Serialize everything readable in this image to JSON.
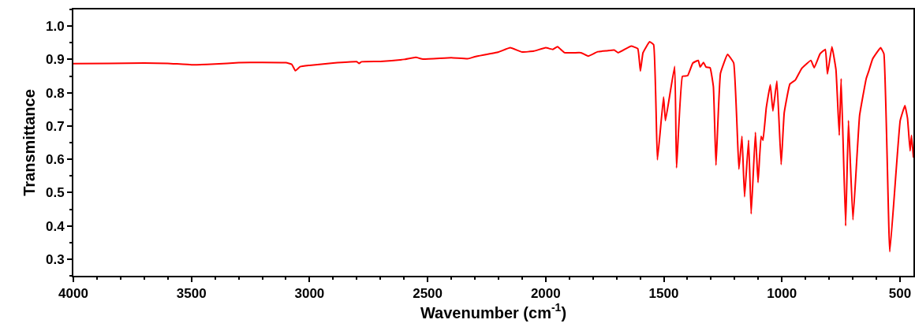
{
  "chart_data": {
    "type": "line",
    "xlabel": "Wavenumber (cm$^{-1}$)",
    "ylabel": "Transmittance",
    "xlim": [
      4000,
      443
    ],
    "ylim": [
      0.25,
      1.05
    ],
    "xticks": [
      4000,
      3500,
      3000,
      2500,
      2000,
      1500,
      1000,
      500
    ],
    "yticks": [
      0.3,
      0.4,
      0.5,
      0.6,
      0.7,
      0.8,
      0.9,
      {
        "value": 1,
        "label": "1.0"
      }
    ],
    "marker": "none",
    "line_style": "solid",
    "series": [
      {
        "color": "#ff0000",
        "x": [
          4000,
          3850,
          3700,
          3600,
          3500,
          3400,
          3300,
          3200,
          3100,
          3075,
          3060,
          3040,
          3000,
          2900,
          2800,
          2790,
          2780,
          2700,
          2600,
          2550,
          2520,
          2400,
          2330,
          2300,
          2200,
          2150,
          2100,
          2050,
          2000,
          1970,
          1950,
          1920,
          1880,
          1850,
          1820,
          1780,
          1740,
          1710,
          1693,
          1638,
          1610,
          1599,
          1588,
          1560,
          1543,
          1527,
          1501,
          1493,
          1454,
          1446,
          1421,
          1399,
          1377,
          1354,
          1346,
          1332,
          1321,
          1304,
          1290,
          1279,
          1260,
          1230,
          1204,
          1182,
          1169,
          1158,
          1141,
          1130,
          1112,
          1101,
          1088,
          1080,
          1066,
          1049,
          1038,
          1021,
          1003,
          990,
          966,
          943,
          916,
          877,
          863,
          838,
          816,
          807,
          788,
          771,
          757,
          749,
          730,
          718,
          699,
          671,
          643,
          632,
          616,
          582,
          568,
          543,
          499,
          479,
          468,
          457,
          451,
          443
        ],
        "values": [
          0.887,
          0.888,
          0.889,
          0.888,
          0.884,
          0.886,
          0.89,
          0.891,
          0.89,
          0.885,
          0.866,
          0.878,
          0.882,
          0.889,
          0.893,
          0.888,
          0.893,
          0.894,
          0.9,
          0.906,
          0.901,
          0.905,
          0.902,
          0.908,
          0.922,
          0.935,
          0.922,
          0.925,
          0.935,
          0.93,
          0.938,
          0.92,
          0.92,
          0.92,
          0.91,
          0.923,
          0.926,
          0.928,
          0.92,
          0.94,
          0.932,
          0.865,
          0.92,
          0.953,
          0.944,
          0.598,
          0.787,
          0.716,
          0.879,
          0.574,
          0.849,
          0.851,
          0.889,
          0.897,
          0.877,
          0.891,
          0.877,
          0.875,
          0.818,
          0.582,
          0.858,
          0.915,
          0.889,
          0.57,
          0.669,
          0.487,
          0.657,
          0.436,
          0.681,
          0.53,
          0.669,
          0.657,
          0.755,
          0.824,
          0.745,
          0.835,
          0.584,
          0.74,
          0.826,
          0.838,
          0.873,
          0.897,
          0.875,
          0.917,
          0.93,
          0.856,
          0.938,
          0.869,
          0.672,
          0.842,
          0.4,
          0.716,
          0.418,
          0.731,
          0.842,
          0.865,
          0.901,
          0.935,
          0.917,
          0.322,
          0.716,
          0.761,
          0.723,
          0.625,
          0.672,
          0.605
        ]
      }
    ]
  }
}
